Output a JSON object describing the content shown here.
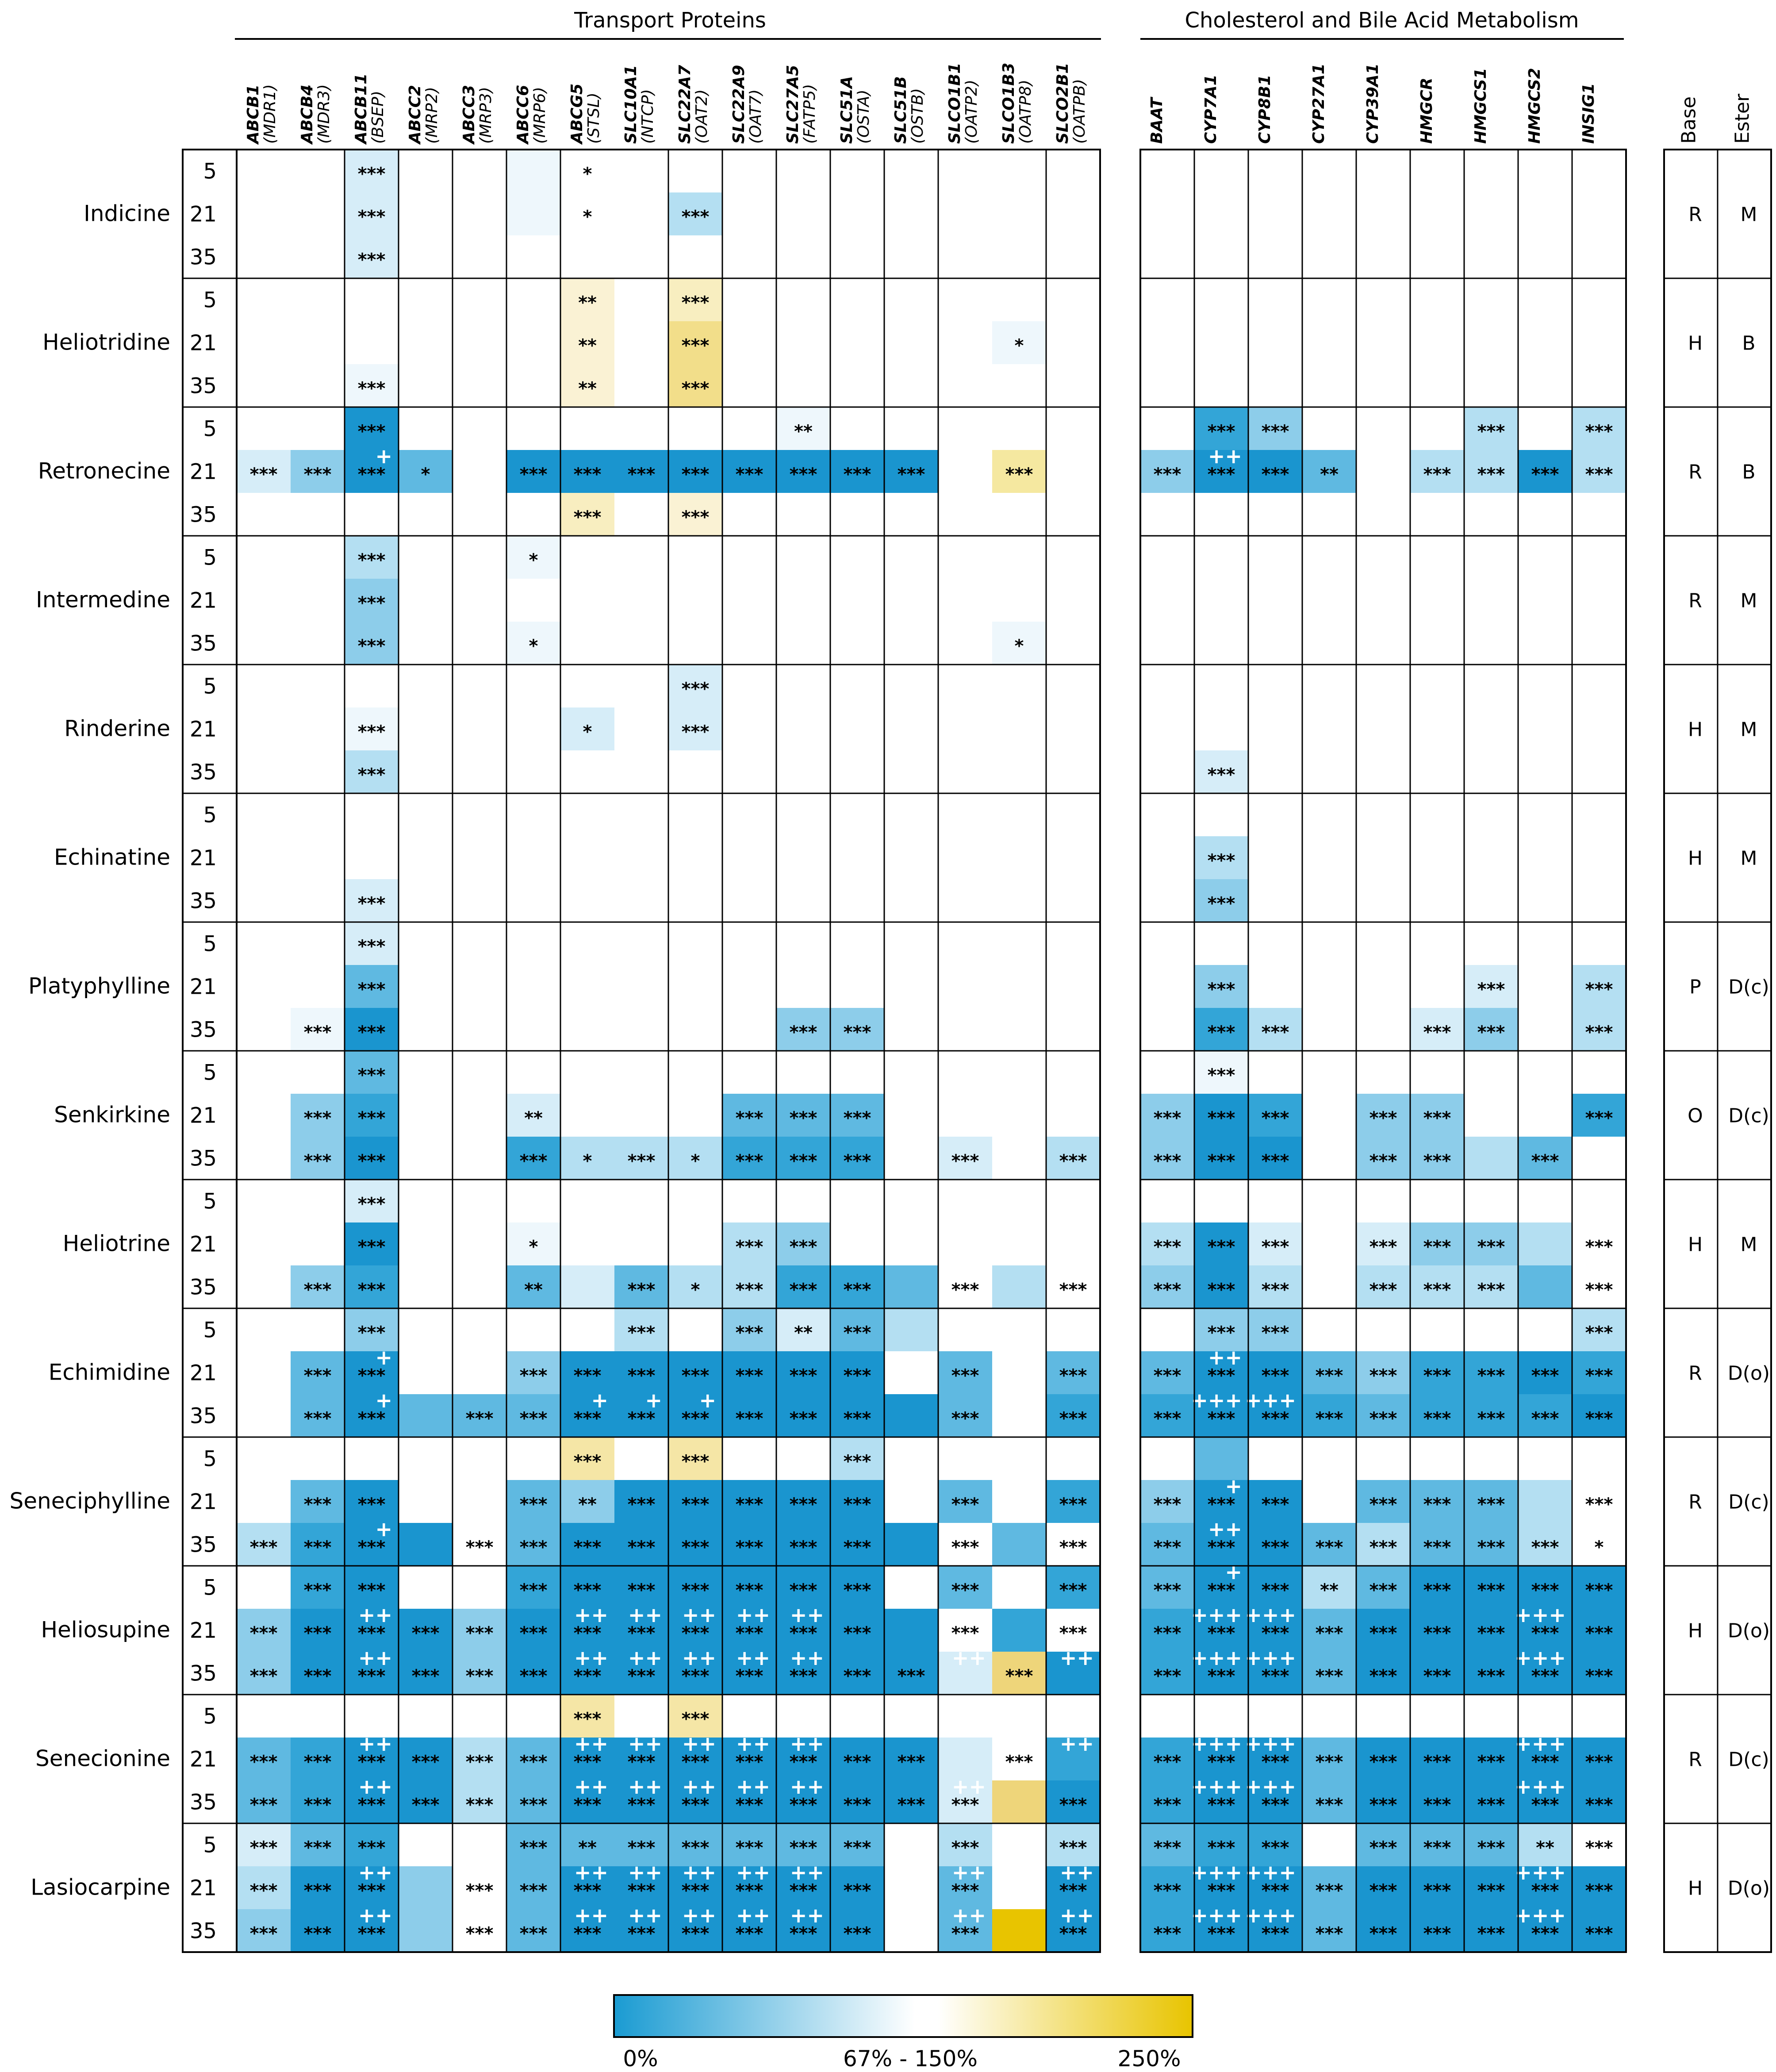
{
  "chart_data": {
    "type": "heatmap",
    "sections": [
      {
        "title": "Transport Proteins",
        "genes": [
          "ABCB1",
          "ABCB4",
          "ABCB11",
          "ABCC2",
          "ABCC3",
          "ABCC6",
          "ABCG5",
          "SLC10A1",
          "SLC22A7",
          "SLC22A9",
          "SLC27A5",
          "SLC51A",
          "SLC51B",
          "SLCO1B1",
          "SLCO1B3",
          "SLCO2B1"
        ],
        "aliases": [
          "(MDR1)",
          "(MDR3)",
          "(BSEP)",
          "(MRP2)",
          "(MRP3)",
          "(MRP6)",
          "(STSL)",
          "(NTCP)",
          "(OAT2)",
          "(OAT7)",
          "(FATP5)",
          "(OSTA)",
          "(OSTB)",
          "(OATP2)",
          "(OATP8)",
          "(OATPB)"
        ]
      },
      {
        "title": "Cholesterol and Bile Acid Metabolism",
        "genes": [
          "BAAT",
          "CYP7A1",
          "CYP8B1",
          "CYP27A1",
          "CYP39A1",
          "HMGCR",
          "HMGCS1",
          "HMGCS2",
          "INSIG1"
        ]
      }
    ],
    "extra_headers": [
      "Base",
      "Ester"
    ],
    "doses": [
      "5",
      "21",
      "35"
    ],
    "compounds": [
      {
        "name": "Indicine",
        "base": "R",
        "ester": "M",
        "tp": [
          "..2..1......... ",
          "..2..1..3....... ",
          "..2............."
        ],
        "tps": [
          "..3...1.........",
          "..3...1.3.......",
          "..3............."
        ],
        "ch": [
          ".........",
          ".........",
          "........."
        ],
        "chs": [
          ".........",
          ".........",
          "........."
        ]
      },
      {
        "name": "Heliotridine",
        "base": "H",
        "ester": "B",
        "tp": [
          "......4.5.......",
          "......4.6.....1.",
          "..1...4.6......."
        ],
        "tps": [
          "......2.3.......",
          "......2.3.....1.",
          "..3...2.3......."
        ],
        "ch": [
          ".........",
          ".........",
          "........."
        ],
        "chs": [
          ".........",
          ".........",
          "........."
        ]
      },
      {
        "name": "Retronecine",
        "base": "R",
        "ester": "B",
        "tp": [
          "..7.......1.....",
          "2485.77777777.4.4",
          "......5.4......."
        ],
        "tps": [
          "..3.......2.....",
          "3331.33333333.3.3",
          "......3.3......."
        ],
        "ch": [
          ".64...3.3",
          "4875.3373",
          "........."
        ],
        "chs": [
          ".33...3.3",
          "3332.3333",
          "........."
        ]
      },
      {
        "name": "Intermedine",
        "base": "R",
        "ester": "M",
        "tp": [
          "..3..1..........",
          "..4.............",
          "..4..1........1."
        ],
        "tps": [
          "..3..1..........",
          "..3.............",
          "..3..1........1."
        ],
        "ch": [
          ".........",
          ".........",
          "........."
        ],
        "chs": [
          ".........",
          ".........",
          "........."
        ]
      },
      {
        "name": "Rinderine",
        "base": "H",
        "ester": "M",
        "tp": [
          "........2.......",
          "..1...2.2.......",
          "..3............."
        ],
        "tps": [
          "........3.......",
          "..3...1.3.......",
          "..3............."
        ],
        "ch": [
          ".........",
          ".........",
          ".2......."
        ],
        "chs": [
          ".........",
          ".........",
          ".3......."
        ]
      },
      {
        "name": "Echinatine",
        "base": "H",
        "ester": "M",
        "tp": [
          "................",
          "................",
          "..2............."
        ],
        "tps": [
          "................",
          "................",
          "..3............."
        ],
        "ch": [
          ".........",
          ".3.......",
          ".4......."
        ],
        "chs": [
          ".........",
          ".3.......",
          ".3......."
        ]
      },
      {
        "name": "Platyphylline",
        "base": "P",
        "ester": "D(c)",
        "tp": [
          "..2.............",
          "..5.............",
          ".17.......44...."
        ],
        "tps": [
          "..3.............",
          "..3.............",
          ".33.......33...."
        ],
        "ch": [
          ".........",
          ".4....2.3",
          ".63..24.3"
        ],
        "chs": [
          ".........",
          ".3....3.3",
          ".33..33.3"
        ]
      },
      {
        "name": "Senkirkine",
        "base": "O",
        "ester": "D(c)",
        "tp": [
          "..5.............",
          ".46..2...555....",
          ".47..6333666.2.3"
        ],
        "tps": [
          "..3.............",
          ".33..2...333....",
          ".33..3131333.3.3"
        ],
        "ch": [
          ".1.......",
          "476.44..6",
          "477.4435.6"
        ],
        "chs": [
          ".3.......",
          "333.33..3",
          "333.33.3"
        ]
      },
      {
        "name": "Heliotrine",
        "base": "H",
        "ester": "M",
        "tp": [
          "..2.............",
          "..7..1...34.....",
          ".46..52533665.3.2"
        ],
        "tps": [
          "..3.............",
          "..3..1...33.....",
          ".33..2.31333.3.3"
        ],
        "ch": [
          ".........",
          "372.2443.5",
          "473.3335.5"
        ],
        "chs": [
          ".........",
          "333.333.3",
          "333.333.3"
        ]
      },
      {
        "name": "Echimidine",
        "base": "R",
        "ester": "D(o)",
        "tp": [
          "..4....3.4253....",
          ".58..4777777.5.5",
          ".5855577777775.6.6"
        ],
        "tps": [
          "..3....3.323....",
          ".33..3333333.3.3",
          ".33.33333333.3.3"
        ],
        "ch": [
          ".44.....3",
          "5875466767",
          "6876566677"
        ],
        "chs": [
          ".33.....3",
          "333333333",
          "333333333"
        ]
      },
      {
        "name": "Seneciphylline",
        "base": "R",
        "ester": "D(c)",
        "tp": [
          "......4.4..3....",
          ".58..5477777.5.6",
          "3678.57777777.5.6"
        ],
        "tps": [
          "......3.3..3....",
          ".33..3233333.3.3",
          "333.33333333.3.3"
        ],
        "ch": [
          ".5.......",
          "487.5553.7",
          "58753553.7"
        ],
        "chs": [
          ".........",
          "333.333.3",
          "3333333313"
        ],
        "plus": {
          "ch": {
            "1": [
              1
            ],
            "2": [
              1
            ]
          }
        }
      },
      {
        "name": "Heliosupine",
        "base": "H",
        "ester": "D(o)",
        "tp": [
          ".67..6777777.5.6",
          "4778477777777.6.7",
          "47784777777772.77"
        ],
        "tps": [
          ".33..3333333.3.3",
          "333333333333.3.3",
          "3333333333333.3.3"
        ],
        "ch": [
          "5773577775",
          "677577777",
          "677577777"
        ],
        "chs": [
          "3332333333",
          "333333333",
          "333333333"
        ]
      },
      {
        "name": "Senecionine",
        "base": "R",
        "ester": "D(c)",
        "tp": [
          "......5.5.......",
          "56773577777772.6.7",
          "56773577777772.76.7"
        ],
        "tps": [
          "......3.3.......",
          "3333333333333.3.3",
          "33333333333333.3.3"
        ],
        "ch": [
          ".........",
          "677577777",
          "677577777"
        ],
        "chs": [
          ".........",
          "333333333",
          "333333333"
        ]
      },
      {
        "name": "Lasiocarpine",
        "base": "H",
        "ester": "D(o)",
        "tp": [
          "256..5555555.3.3",
          "3774.5777777.5.7.6",
          "4774.5777777.5.8.7"
        ],
        "tps": [
          "333..3233333.3.3",
          "333.33333333.3.3.3",
          "333.33333333.3.3.3"
        ],
        "ch": [
          "566.5553.5",
          "677577777",
          "677577777"
        ],
        "chs": [
          "333.33323",
          "333333333",
          "333333333"
        ]
      }
    ],
    "legend": {
      "labels": [
        "0%",
        "67% - 150%",
        "250%"
      ],
      "colors": [
        "#1a9bd2",
        "#ffffff",
        "#e8c400"
      ]
    }
  }
}
